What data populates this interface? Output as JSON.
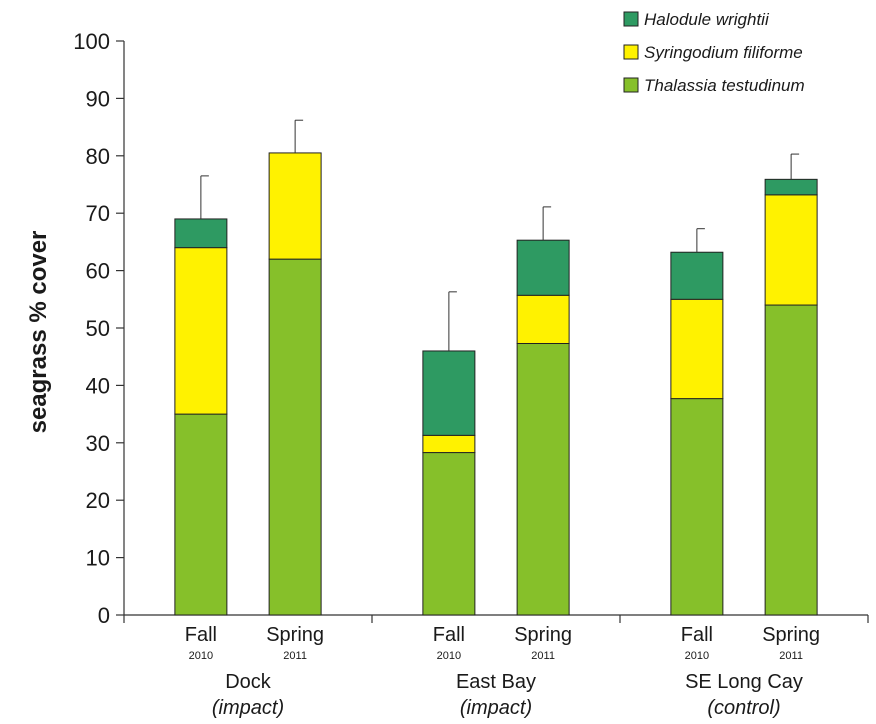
{
  "chart_data": {
    "type": "bar",
    "stacked": true,
    "ylabel": "seagrass % cover",
    "ylim": [
      0,
      100
    ],
    "yticks": [
      0,
      10,
      20,
      30,
      40,
      50,
      60,
      70,
      80,
      90,
      100
    ],
    "groups": [
      {
        "site": "Dock",
        "note": "(impact)",
        "bars": [
          {
            "season": "Fall",
            "year": "2010",
            "values": [
              35,
              29,
              5
            ],
            "error_top": 76.5
          },
          {
            "season": "Spring",
            "year": "2011",
            "values": [
              62,
              18.5,
              0
            ],
            "error_top": 86.2
          }
        ]
      },
      {
        "site": "East Bay",
        "note": "(impact)",
        "bars": [
          {
            "season": "Fall",
            "year": "2010",
            "values": [
              28.3,
              3,
              14.7
            ],
            "error_top": 56.3
          },
          {
            "season": "Spring",
            "year": "2011",
            "values": [
              47.3,
              8.4,
              9.6
            ],
            "error_top": 71.1
          }
        ]
      },
      {
        "site": "SE Long Cay",
        "note": "(control)",
        "bars": [
          {
            "season": "Fall",
            "year": "2010",
            "values": [
              37.7,
              17.3,
              8.2
            ],
            "error_top": 67.3
          },
          {
            "season": "Spring",
            "year": "2011",
            "values": [
              54,
              19.2,
              2.7
            ],
            "error_top": 80.3
          }
        ]
      }
    ],
    "series": [
      {
        "name": "Thalassia testudinum",
        "color": "#86c02a"
      },
      {
        "name": "Syringodium filiforme",
        "color": "#fff200"
      },
      {
        "name": "Halodule wrightii",
        "color": "#2e9a62"
      }
    ],
    "legend": {
      "position": "top-right",
      "order": [
        "Halodule wrightii",
        "Syringodium filiforme",
        "Thalassia testudinum"
      ]
    },
    "grid": false
  }
}
